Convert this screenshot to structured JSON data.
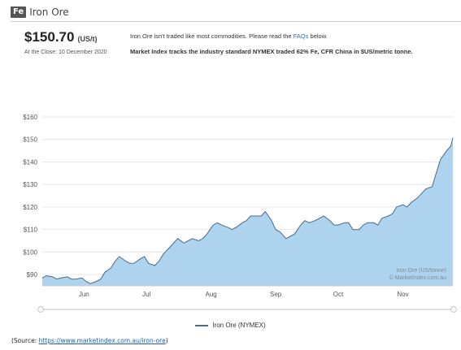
{
  "header": {
    "symbol": "Fe",
    "title": "Iron Ore"
  },
  "price": {
    "value": "$150.70",
    "unit": "(US/t)",
    "close_label": "At the Close: 10 December 2020"
  },
  "info": {
    "line1_pre": "Iron Ore isn't traded like most commodities. Please read the ",
    "faq_link": "FAQs",
    "line1_post": " below.",
    "line2": "Market Index tracks the industry standard NYMEX traded 62% Fe, CFR China in $US/metric tonne."
  },
  "chart_data": {
    "type": "area",
    "title": "",
    "xlabel": "",
    "ylabel": "",
    "ylim": [
      85,
      160
    ],
    "y_ticks": [
      "$90",
      "$100",
      "$110",
      "$120",
      "$130",
      "$140",
      "$150",
      "$160"
    ],
    "x_ticks": [
      {
        "label": "Jun",
        "x": "2020-06-01"
      },
      {
        "label": "Jul",
        "x": "2020-07-01"
      },
      {
        "label": "Aug",
        "x": "2020-08-01"
      },
      {
        "label": "Sep",
        "x": "2020-09-01"
      },
      {
        "label": "Oct",
        "x": "2020-10-01"
      },
      {
        "label": "Nov",
        "x": "2020-11-01"
      }
    ],
    "grid": true,
    "legend": "bottom-center",
    "watermark": [
      "Iron Ore (US/tonne)",
      "© MarketIndex.com.au"
    ],
    "color": "#aed3ef",
    "line_color": "#4a6b8a",
    "series": [
      {
        "name": "Iron Ore (NYMEX)",
        "x": [
          "2020-05-27",
          "2020-05-29",
          "2020-06-01",
          "2020-06-03",
          "2020-06-05",
          "2020-06-08",
          "2020-06-10",
          "2020-06-12",
          "2020-06-15",
          "2020-06-17",
          "2020-06-19",
          "2020-06-22",
          "2020-06-24",
          "2020-06-26",
          "2020-06-29",
          "2020-07-01",
          "2020-07-03",
          "2020-07-06",
          "2020-07-08",
          "2020-07-10",
          "2020-07-13",
          "2020-07-15",
          "2020-07-17",
          "2020-07-20",
          "2020-07-22",
          "2020-07-24",
          "2020-07-27",
          "2020-07-29",
          "2020-07-31",
          "2020-08-03",
          "2020-08-05",
          "2020-08-07",
          "2020-08-10",
          "2020-08-12",
          "2020-08-14",
          "2020-08-17",
          "2020-08-19",
          "2020-08-21",
          "2020-08-24",
          "2020-08-26",
          "2020-08-28",
          "2020-08-31",
          "2020-09-02",
          "2020-09-04",
          "2020-09-07",
          "2020-09-09",
          "2020-09-11",
          "2020-09-14",
          "2020-09-16",
          "2020-09-18",
          "2020-09-21",
          "2020-09-23",
          "2020-09-25",
          "2020-09-28",
          "2020-09-30",
          "2020-10-02",
          "2020-10-05",
          "2020-10-07",
          "2020-10-09",
          "2020-10-12",
          "2020-10-14",
          "2020-10-16",
          "2020-10-19",
          "2020-10-21",
          "2020-10-23",
          "2020-10-26",
          "2020-10-28",
          "2020-10-30",
          "2020-11-02",
          "2020-11-04",
          "2020-11-06",
          "2020-11-09",
          "2020-11-11",
          "2020-11-13",
          "2020-11-16",
          "2020-11-18",
          "2020-11-20",
          "2020-11-23",
          "2020-11-25",
          "2020-11-27",
          "2020-11-30",
          "2020-12-02",
          "2020-12-04",
          "2020-12-07",
          "2020-12-09",
          "2020-12-10"
        ],
        "values": [
          88.5,
          89.5,
          89,
          88,
          88.5,
          89,
          88,
          88,
          88.5,
          87,
          86,
          87,
          88,
          91,
          93,
          96,
          98,
          96,
          95,
          95,
          97,
          98,
          95,
          94,
          96,
          99,
          102,
          104,
          106,
          104,
          105,
          106,
          105,
          106,
          108,
          112,
          113,
          112,
          111,
          110,
          111,
          113,
          114,
          116,
          116,
          116,
          118,
          114,
          110,
          109,
          106,
          107,
          108,
          112,
          114,
          113,
          114,
          115,
          116,
          114,
          112,
          112,
          113,
          113,
          110,
          110,
          112,
          113,
          113,
          112,
          115,
          116,
          117,
          120,
          121,
          120,
          122,
          124,
          126,
          128,
          129,
          135,
          141,
          145,
          147,
          150.7
        ]
      }
    ]
  },
  "legend": {
    "label": "Iron Ore (NYMEX)"
  },
  "source": {
    "prefix": "(Source: ",
    "url": "https://www.marketindex.com.au/iron-ore",
    "suffix": ")"
  }
}
